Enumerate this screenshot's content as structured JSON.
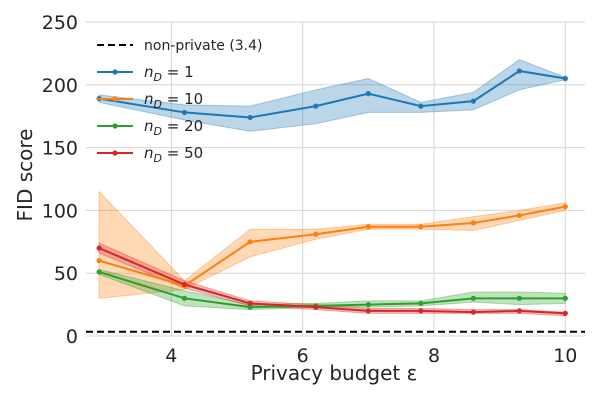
{
  "chart_data": {
    "type": "line",
    "xlabel": "Privacy budget ε",
    "ylabel": "FID score",
    "xlim": [
      2.7,
      10.3
    ],
    "ylim": [
      0,
      250
    ],
    "x_ticks": [
      4,
      6,
      8,
      10
    ],
    "y_ticks": [
      0,
      50,
      100,
      150,
      200,
      250
    ],
    "grid": true,
    "legend_position": "top-left",
    "reference_line": {
      "label": "non-private (3.4)",
      "value": 3.4,
      "color": "#000000"
    },
    "x": [
      2.9,
      4.2,
      5.2,
      6.2,
      7.0,
      7.8,
      8.6,
      9.3,
      10.0
    ],
    "series": [
      {
        "name": "n_D = 1",
        "legend_main": "n",
        "legend_sub": "D",
        "legend_rest": " = 1",
        "color": "#1f77b4",
        "values": [
          189,
          178,
          174,
          183,
          193,
          183,
          187,
          211,
          205
        ],
        "lower": [
          186,
          172,
          163,
          169,
          178,
          178,
          180,
          196,
          204
        ],
        "upper": [
          192,
          184,
          183,
          196,
          205,
          186,
          194,
          220,
          206
        ]
      },
      {
        "name": "n_D = 10",
        "legend_main": "n",
        "legend_sub": "D",
        "legend_rest": " = 10",
        "color": "#ff7f0e",
        "values": [
          60,
          40,
          75,
          81,
          87,
          87,
          90,
          96,
          103
        ],
        "lower": [
          30,
          37,
          63,
          77,
          85,
          85,
          84,
          92,
          100
        ],
        "upper": [
          115,
          44,
          85,
          85,
          89,
          89,
          95,
          100,
          106
        ]
      },
      {
        "name": "n_D = 20",
        "legend_main": "n",
        "legend_sub": "D",
        "legend_rest": " = 20",
        "color": "#2ca02c",
        "values": [
          51,
          30,
          23,
          24,
          25,
          26,
          30,
          30,
          30
        ],
        "lower": [
          49,
          24,
          21,
          23,
          23,
          24,
          27,
          25,
          26
        ],
        "upper": [
          53,
          36,
          25,
          26,
          28,
          28,
          35,
          35,
          34
        ]
      },
      {
        "name": "n_D = 50",
        "legend_main": "n",
        "legend_sub": "D",
        "legend_rest": " = 50",
        "color": "#d62728",
        "values": [
          70,
          41,
          26,
          23,
          20,
          20,
          19,
          20,
          18
        ],
        "lower": [
          66,
          38,
          24,
          21,
          18,
          18,
          18,
          18,
          16
        ],
        "upper": [
          74,
          44,
          28,
          25,
          22,
          22,
          21,
          21,
          19
        ]
      }
    ]
  }
}
